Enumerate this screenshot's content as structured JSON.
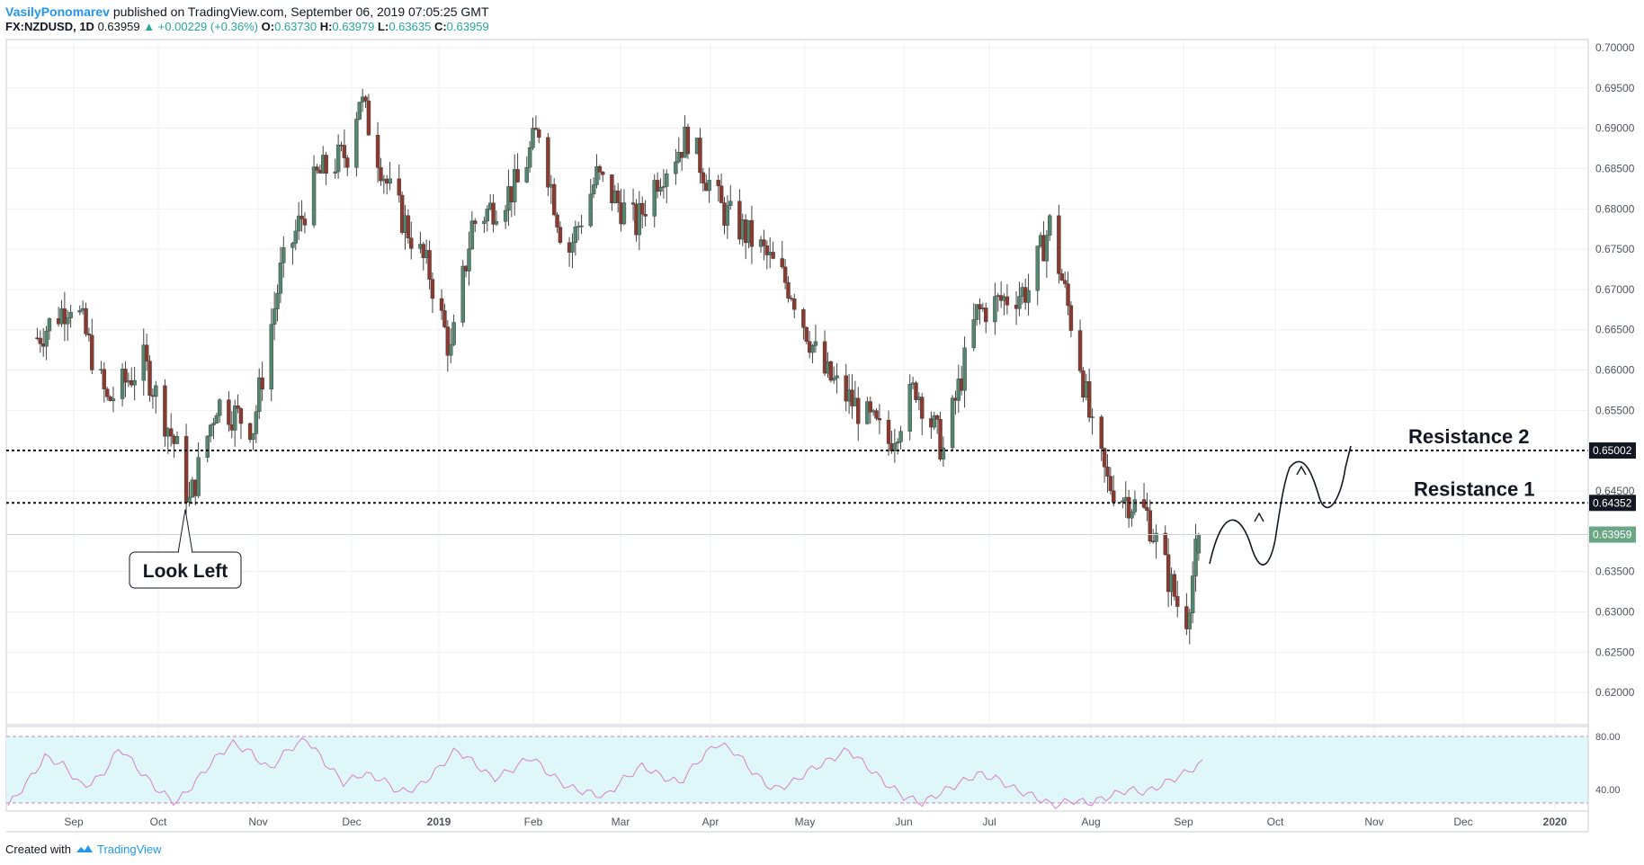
{
  "header": {
    "author": "VasilyPonomarev",
    "published_text": "published on TradingView.com, September 06, 2019 07:05:25 GMT",
    "symbol": "FX:NZDUSD, 1D",
    "last": "0.63959",
    "change": "▲ +0.00229 (+0.36%)",
    "o_label": "O:",
    "o_value": "0.63730",
    "h_label": "H:",
    "h_value": "0.63979",
    "l_label": "L:",
    "l_value": "0.63635",
    "c_label": "C:",
    "c_value": "0.63959"
  },
  "footer": {
    "created_with": "Created with",
    "brand": "TradingView"
  },
  "colors": {
    "up": "#53856f",
    "down": "#8b3a30",
    "wick": "#444444",
    "rsi_line": "#d77fc5",
    "rsi_band": "#e0f7fa",
    "grid": "#eef0f3",
    "price_badge": "#6aa584"
  },
  "annotations": {
    "look_left": "Look Left",
    "resistance_1": "Resistance 1",
    "resistance_2": "Resistance 2"
  },
  "chart_data": {
    "type": "candlestick",
    "symbol": "FX:NZDUSD",
    "interval": "1D",
    "y_ticks": [
      "0.70000",
      "0.69500",
      "0.69000",
      "0.68500",
      "0.68000",
      "0.67500",
      "0.67000",
      "0.66500",
      "0.66000",
      "0.65500",
      "0.64500",
      "0.63500",
      "0.63000",
      "0.62500",
      "0.62000"
    ],
    "ylim": [
      0.616,
      0.701
    ],
    "x_ticks": [
      "Sep",
      "Oct",
      "Nov",
      "Dec",
      "2019",
      "Feb",
      "Mar",
      "Apr",
      "May",
      "Jun",
      "Jul",
      "Aug",
      "Sep",
      "Oct",
      "Nov",
      "Dec",
      "2020"
    ],
    "horizontal_lines": [
      {
        "label": "Resistance 2",
        "value": 0.65002,
        "badge": "0.65002"
      },
      {
        "label": "Resistance 1",
        "value": 0.64352,
        "badge": "0.64352"
      }
    ],
    "last_price": {
      "value": 0.63959,
      "badge": "0.63959"
    },
    "closes_sample": [
      [
        "2018-08-20",
        0.664
      ],
      [
        "2018-09-01",
        0.669
      ],
      [
        "2018-09-12",
        0.656
      ],
      [
        "2018-09-24",
        0.661
      ],
      [
        "2018-10-05",
        0.65
      ],
      [
        "2018-10-09",
        0.6435
      ],
      [
        "2018-10-18",
        0.656
      ],
      [
        "2018-10-30",
        0.653
      ],
      [
        "2018-11-08",
        0.672
      ],
      [
        "2018-11-20",
        0.684
      ],
      [
        "2018-11-30",
        0.687
      ],
      [
        "2018-12-04",
        0.694
      ],
      [
        "2018-12-14",
        0.682
      ],
      [
        "2018-12-27",
        0.672
      ],
      [
        "2019-01-03",
        0.662
      ],
      [
        "2019-01-10",
        0.678
      ],
      [
        "2019-01-25",
        0.683
      ],
      [
        "2019-02-01",
        0.69
      ],
      [
        "2019-02-10",
        0.674
      ],
      [
        "2019-02-20",
        0.684
      ],
      [
        "2019-03-05",
        0.678
      ],
      [
        "2019-03-12",
        0.684
      ],
      [
        "2019-03-22",
        0.689
      ],
      [
        "2019-04-02",
        0.68
      ],
      [
        "2019-04-15",
        0.675
      ],
      [
        "2019-04-25",
        0.67
      ],
      [
        "2019-05-05",
        0.66
      ],
      [
        "2019-05-15",
        0.656
      ],
      [
        "2019-05-27",
        0.651
      ],
      [
        "2019-06-05",
        0.658
      ],
      [
        "2019-06-14",
        0.65
      ],
      [
        "2019-06-25",
        0.667
      ],
      [
        "2019-07-05",
        0.669
      ],
      [
        "2019-07-12",
        0.67
      ],
      [
        "2019-07-19",
        0.678
      ],
      [
        "2019-07-29",
        0.661
      ],
      [
        "2019-08-02",
        0.652
      ],
      [
        "2019-08-07",
        0.646
      ],
      [
        "2019-08-20",
        0.642
      ],
      [
        "2019-08-30",
        0.631
      ],
      [
        "2019-09-02",
        0.6295
      ],
      [
        "2019-09-06",
        0.6396
      ]
    ],
    "rsi": {
      "levels": [
        "80.00",
        "40.00"
      ],
      "band": [
        30,
        70
      ],
      "values_sample": [
        28,
        45,
        65,
        58,
        42,
        50,
        72,
        55,
        40,
        30,
        45,
        62,
        75,
        68,
        55,
        70,
        78,
        60,
        45,
        52,
        48,
        38,
        42,
        55,
        70,
        60,
        48,
        55,
        65,
        52,
        42,
        38,
        35,
        48,
        58,
        50,
        45,
        62,
        75,
        68,
        52,
        40,
        45,
        55,
        62,
        70,
        58,
        45,
        35,
        30,
        38,
        45,
        52,
        48,
        40,
        35,
        28,
        32,
        30,
        35,
        40,
        38,
        45,
        52,
        60
      ]
    },
    "forecast_path": "projected wave up through Resistance 1 toward Resistance 2"
  }
}
